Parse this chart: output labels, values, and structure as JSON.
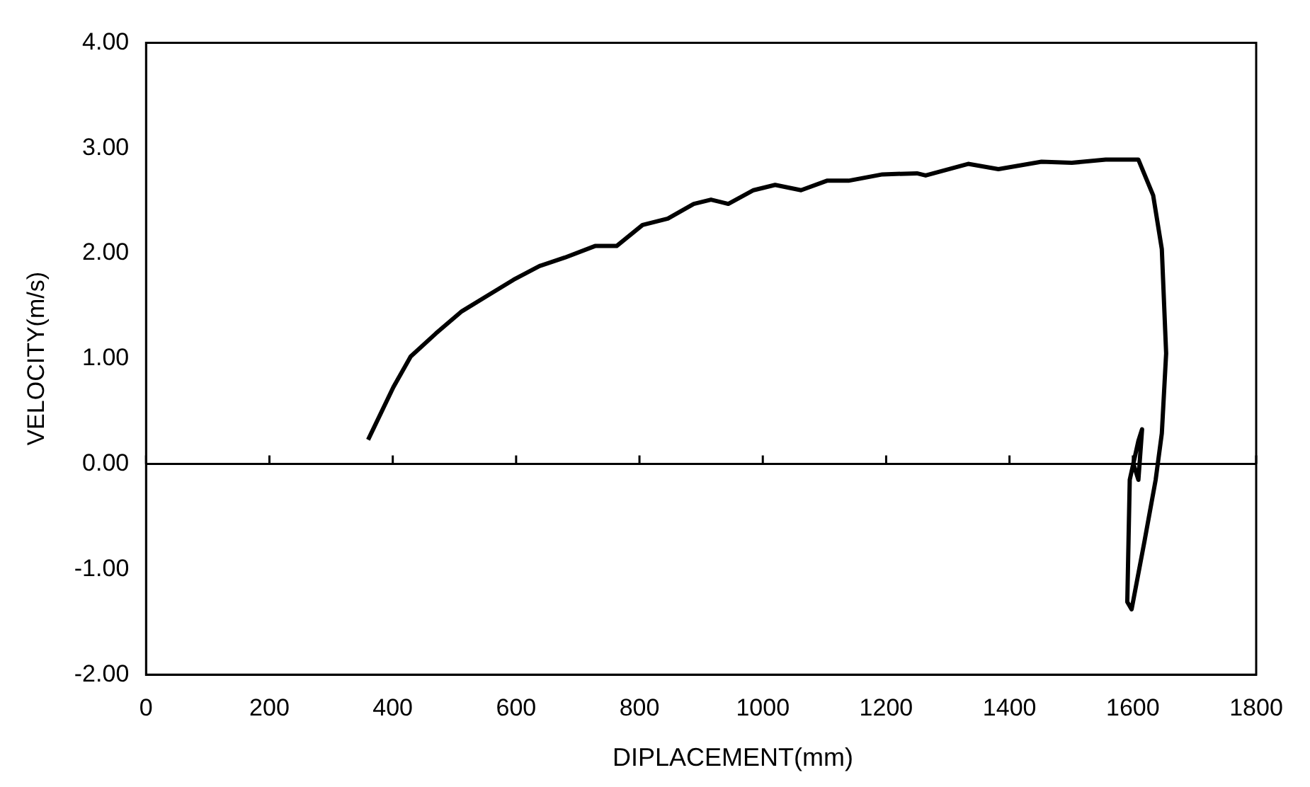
{
  "chart_data": {
    "type": "line",
    "xlabel": "DIPLACEMENT(mm)",
    "ylabel": "VELOCITY(m/s)",
    "xlim": [
      0,
      1800
    ],
    "xticks": [
      0,
      200,
      400,
      600,
      800,
      1000,
      1200,
      1400,
      1600,
      1800
    ],
    "ylim": [
      -2,
      4
    ],
    "yticks": [
      {
        "value": -2,
        "label": "-2.00"
      },
      {
        "value": -1,
        "label": "-1.00"
      },
      {
        "value": 0,
        "label": "0.00"
      },
      {
        "value": 1,
        "label": "1.00"
      },
      {
        "value": 2,
        "label": "2.00"
      },
      {
        "value": 3,
        "label": "3.00"
      },
      {
        "value": 4,
        "label": "4.00"
      }
    ],
    "grid": false,
    "ref_lines": [
      {
        "axis": "y",
        "value": 0,
        "color": "#000000"
      }
    ],
    "legend": false,
    "marker": "none",
    "line_style": "solid",
    "series": [
      {
        "color": "#000000",
        "x": [
          360,
          401,
          429,
          470,
          512,
          554,
          596,
          638,
          679,
          728,
          763,
          805,
          846,
          888,
          916,
          944,
          985,
          1020,
          1062,
          1104,
          1139,
          1194,
          1250,
          1264,
          1333,
          1382,
          1452,
          1501,
          1556,
          1609,
          1633,
          1647,
          1654,
          1647,
          1637,
          1619,
          1598,
          1591,
          1595,
          1609,
          1615,
          1609,
          1601
        ],
        "values": [
          0.23,
          0.73,
          1.02,
          1.24,
          1.45,
          1.6,
          1.75,
          1.88,
          1.96,
          2.07,
          2.07,
          2.27,
          2.33,
          2.47,
          2.51,
          2.47,
          2.6,
          2.65,
          2.6,
          2.69,
          2.69,
          2.75,
          2.76,
          2.74,
          2.85,
          2.8,
          2.87,
          2.86,
          2.89,
          2.89,
          2.55,
          2.04,
          1.05,
          0.29,
          -0.15,
          -0.73,
          -1.38,
          -1.31,
          -0.15,
          0.22,
          0.33,
          -0.15,
          0
        ]
      }
    ]
  }
}
